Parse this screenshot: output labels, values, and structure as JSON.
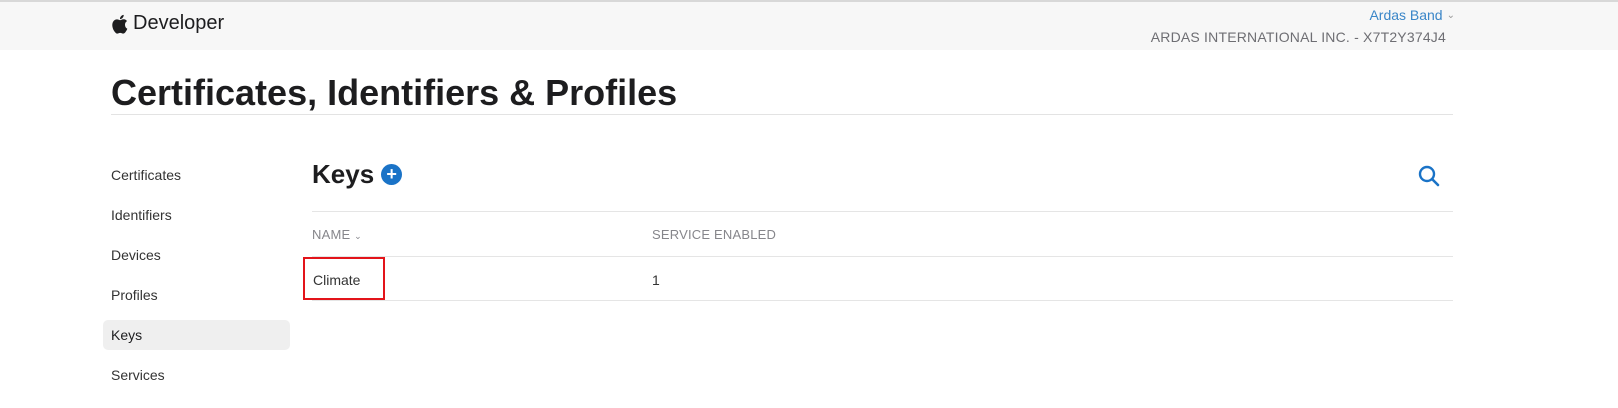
{
  "header": {
    "brand": "Developer",
    "account_name": "Ardas Band",
    "team": "ARDAS INTERNATIONAL INC. - X7T2Y374J4"
  },
  "page_title": "Certificates, Identifiers & Profiles",
  "sidebar": {
    "items": [
      {
        "label": "Certificates"
      },
      {
        "label": "Identifiers"
      },
      {
        "label": "Devices"
      },
      {
        "label": "Profiles"
      },
      {
        "label": "Keys",
        "active": true
      },
      {
        "label": "Services"
      }
    ]
  },
  "main": {
    "heading": "Keys",
    "add_icon": "plus-circle-icon",
    "search_icon": "search-icon",
    "columns": [
      "NAME",
      "SERVICE ENABLED"
    ],
    "rows": [
      {
        "name": "Climate",
        "service_enabled": "1"
      }
    ]
  },
  "colors": {
    "accent": "#1a73c7",
    "highlight": "#e3141a"
  }
}
